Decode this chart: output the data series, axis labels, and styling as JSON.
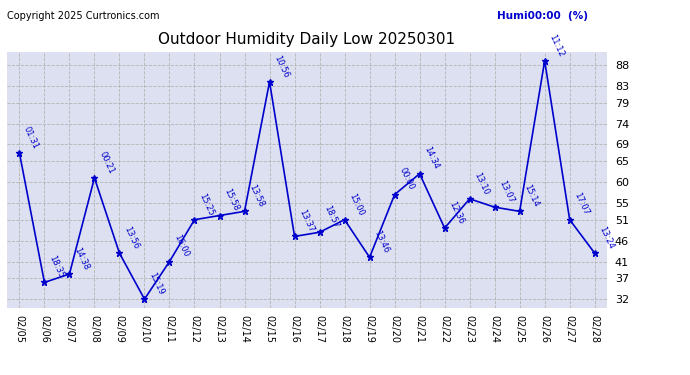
{
  "title": "Outdoor Humidity Daily Low 20250301",
  "copyright": "Copyright 2025 Curtronics.com",
  "legend_label": "Humi00:00  (%)",
  "x_labels": [
    "02/05",
    "02/06",
    "02/07",
    "02/08",
    "02/09",
    "02/10",
    "02/11",
    "02/12",
    "02/13",
    "02/14",
    "02/15",
    "02/16",
    "02/17",
    "02/18",
    "02/19",
    "02/20",
    "02/21",
    "02/22",
    "02/23",
    "02/24",
    "02/25",
    "02/26",
    "02/27",
    "02/28"
  ],
  "y_ticks": [
    32,
    37,
    41,
    46,
    51,
    55,
    60,
    65,
    69,
    74,
    79,
    83,
    88
  ],
  "ylim": [
    30,
    91
  ],
  "data_points": [
    {
      "date": "02/05",
      "value": 67,
      "time": "01:31"
    },
    {
      "date": "02/06",
      "value": 36,
      "time": "18:35"
    },
    {
      "date": "02/07",
      "value": 38,
      "time": "14:38"
    },
    {
      "date": "02/08",
      "value": 61,
      "time": "00:21"
    },
    {
      "date": "02/09",
      "value": 43,
      "time": "13:56"
    },
    {
      "date": "02/10",
      "value": 32,
      "time": "15:19"
    },
    {
      "date": "02/11",
      "value": 41,
      "time": "16:00"
    },
    {
      "date": "02/12",
      "value": 51,
      "time": "15:25"
    },
    {
      "date": "02/13",
      "value": 52,
      "time": "15:58"
    },
    {
      "date": "02/14",
      "value": 53,
      "time": "13:58"
    },
    {
      "date": "02/15",
      "value": 84,
      "time": "10:56"
    },
    {
      "date": "02/16",
      "value": 47,
      "time": "13:37"
    },
    {
      "date": "02/17",
      "value": 48,
      "time": "18:57"
    },
    {
      "date": "02/18",
      "value": 51,
      "time": "15:00"
    },
    {
      "date": "02/19",
      "value": 42,
      "time": "13:46"
    },
    {
      "date": "02/20",
      "value": 57,
      "time": "00:00"
    },
    {
      "date": "02/21",
      "value": 62,
      "time": "14:34"
    },
    {
      "date": "02/22",
      "value": 49,
      "time": "12:36"
    },
    {
      "date": "02/23",
      "value": 56,
      "time": "13:10"
    },
    {
      "date": "02/24",
      "value": 54,
      "time": "13:07"
    },
    {
      "date": "02/25",
      "value": 53,
      "time": "15:14"
    },
    {
      "date": "02/26",
      "value": 89,
      "time": "11:12"
    },
    {
      "date": "02/27",
      "value": 51,
      "time": "17:07"
    },
    {
      "date": "02/28",
      "value": 43,
      "time": "13:24"
    }
  ],
  "line_color": "#0000cc",
  "marker_color": "#0000cc",
  "bg_color": "#ffffff",
  "plot_bg_color": "#dce0f0",
  "grid_color": "#b0b0b0",
  "title_color": "#000000",
  "label_color": "#0000cc",
  "copyright_color": "#000000",
  "legend_color": "#0000cc",
  "y_label_color": "#000000",
  "figsize": [
    6.9,
    3.75
  ],
  "dpi": 100
}
